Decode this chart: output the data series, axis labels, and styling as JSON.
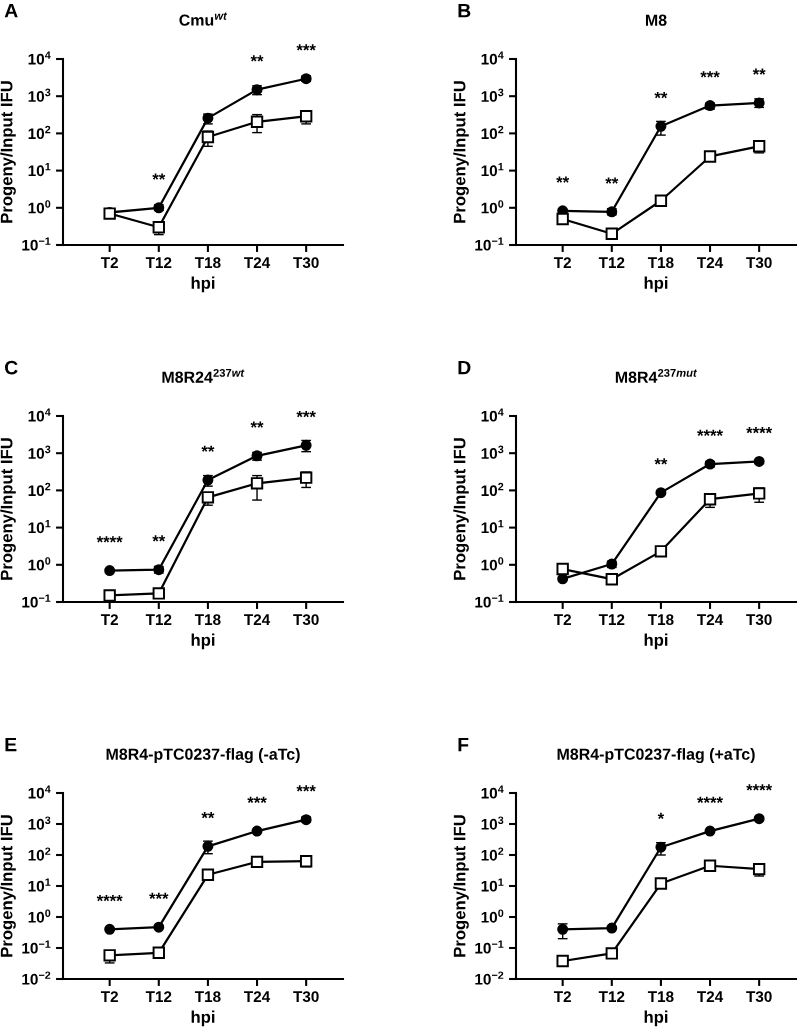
{
  "chart_data": [
    {
      "type": "line",
      "title": "Cmu$^{wt}$",
      "xlabel": "hpi",
      "ylabel": "Progeny/Input IFU",
      "categories": [
        "T2",
        "T12",
        "T18",
        "T24",
        "T30"
      ],
      "log": true,
      "ylim": [
        0.1,
        10000
      ],
      "yticks": [
        {
          "value": 0.1,
          "label": "10$^{−1}$"
        },
        {
          "value": 1,
          "label": "10$^{0}$"
        },
        {
          "value": 10,
          "label": "10$^{1}$"
        },
        {
          "value": 100,
          "label": "10$^{2}$"
        },
        {
          "value": 1000,
          "label": "10$^{3}$"
        },
        {
          "value": 10000,
          "label": "10$^{4}$"
        }
      ],
      "series": [
        {
          "color": "#000000",
          "marker": "circle",
          "values": [
            0.75,
            1.0,
            257,
            1500,
            2950
          ],
          "errors": [
            null,
            [
              0.85,
              1.2
            ],
            [
              180,
              330
            ],
            [
              1100,
              1900
            ],
            [
              2500,
              3500
            ]
          ]
        },
        {
          "color": "#000000",
          "marker": "square",
          "values": [
            0.7,
            0.3,
            80,
            205,
            290
          ],
          "errors": [
            null,
            [
              0.19,
              0.35
            ],
            [
              45,
              115
            ],
            [
              105,
              320
            ],
            [
              180,
              370
            ]
          ]
        }
      ],
      "annotations": [
        "A",
        {
          "text": "**",
          "x": "T12",
          "y": 1.0
        },
        {
          "text": "**",
          "x": "T24",
          "y": 1500
        },
        {
          "text": "***",
          "x": "T30",
          "y": 2950
        }
      ]
    },
    {
      "type": "line",
      "title": "M8",
      "xlabel": "hpi",
      "ylabel": "Progeny/Input IFU",
      "categories": [
        "T2",
        "T12",
        "T18",
        "T24",
        "T30"
      ],
      "log": true,
      "ylim": [
        0.1,
        10000
      ],
      "yticks": [
        {
          "value": 0.1,
          "label": "10$^{−1}$"
        },
        {
          "value": 1,
          "label": "10$^{0}$"
        },
        {
          "value": 10,
          "label": "10$^{1}$"
        },
        {
          "value": 100,
          "label": "10$^{2}$"
        },
        {
          "value": 1000,
          "label": "10$^{3}$"
        },
        {
          "value": 10000,
          "label": "10$^{4}$"
        }
      ],
      "series": [
        {
          "color": "#000000",
          "marker": "circle",
          "values": [
            0.83,
            0.78,
            155,
            560,
            660
          ],
          "errors": [
            null,
            [
              0.65,
              0.95
            ],
            [
              90,
              210
            ],
            [
              450,
              650
            ],
            [
              500,
              850
            ]
          ]
        },
        {
          "color": "#000000",
          "marker": "square",
          "values": [
            0.5,
            0.2,
            1.55,
            24,
            45
          ],
          "errors": [
            [
              0.38,
              0.6
            ],
            null,
            [
              1.25,
              1.9
            ],
            null,
            [
              30,
              55
            ]
          ]
        }
      ],
      "annotations": [
        "B",
        {
          "text": "**",
          "x": "T2",
          "y": 0.83
        },
        {
          "text": "**",
          "x": "T12",
          "y": 0.78
        },
        {
          "text": "**",
          "x": "T18",
          "y": 155
        },
        {
          "text": "***",
          "x": "T24",
          "y": 560
        },
        {
          "text": "**",
          "x": "T30",
          "y": 660
        }
      ]
    },
    {
      "type": "line",
      "title": "M8R24$^{237wt}$",
      "xlabel": "hpi",
      "ylabel": "Progeny/Input IFU",
      "categories": [
        "T2",
        "T12",
        "T18",
        "T24",
        "T30"
      ],
      "log": true,
      "ylim": [
        0.1,
        10000
      ],
      "yticks": [
        {
          "value": 0.1,
          "label": "10$^{−1}$"
        },
        {
          "value": 1,
          "label": "10$^{0}$"
        },
        {
          "value": 10,
          "label": "10$^{1}$"
        },
        {
          "value": 100,
          "label": "10$^{2}$"
        },
        {
          "value": 1000,
          "label": "10$^{3}$"
        },
        {
          "value": 10000,
          "label": "10$^{4}$"
        }
      ],
      "series": [
        {
          "color": "#000000",
          "marker": "circle",
          "values": [
            0.7,
            0.74,
            190,
            850,
            1630
          ],
          "errors": [
            null,
            [
              0.6,
              0.9
            ],
            [
              130,
              250
            ],
            [
              650,
              1050
            ],
            [
              1100,
              2200
            ]
          ]
        },
        {
          "color": "#000000",
          "marker": "square",
          "values": [
            0.15,
            0.17,
            65,
            155,
            220
          ],
          "errors": [
            null,
            null,
            [
              40,
              85
            ],
            [
              55,
              250
            ],
            [
              120,
              310
            ]
          ]
        }
      ],
      "annotations": [
        "C",
        {
          "text": "****",
          "x": "T2",
          "y": 0.7
        },
        {
          "text": "**",
          "x": "T12",
          "y": 0.74
        },
        {
          "text": "**",
          "x": "T18",
          "y": 190
        },
        {
          "text": "**",
          "x": "T24",
          "y": 850
        },
        {
          "text": "***",
          "x": "T30",
          "y": 1630
        }
      ]
    },
    {
      "type": "line",
      "title": "M8R4$^{237mut}$",
      "xlabel": "hpi",
      "ylabel": "Progeny/Input IFU",
      "categories": [
        "T2",
        "T12",
        "T18",
        "T24",
        "T30"
      ],
      "log": true,
      "ylim": [
        0.1,
        10000
      ],
      "yticks": [
        {
          "value": 0.1,
          "label": "10$^{−1}$"
        },
        {
          "value": 1,
          "label": "10$^{0}$"
        },
        {
          "value": 10,
          "label": "10$^{1}$"
        },
        {
          "value": 100,
          "label": "10$^{2}$"
        },
        {
          "value": 1000,
          "label": "10$^{3}$"
        },
        {
          "value": 10000,
          "label": "10$^{4}$"
        }
      ],
      "series": [
        {
          "color": "#000000",
          "marker": "circle",
          "values": [
            0.42,
            1.05,
            87,
            510,
            600
          ],
          "errors": [
            null,
            [
              0.85,
              1.25
            ],
            null,
            [
              430,
              600
            ],
            null
          ]
        },
        {
          "color": "#000000",
          "marker": "square",
          "values": [
            0.77,
            0.41,
            2.3,
            58,
            83
          ],
          "errors": [
            null,
            [
              0.3,
              0.5
            ],
            null,
            [
              35,
              75
            ],
            [
              48,
              115
            ]
          ]
        }
      ],
      "annotations": [
        "D",
        {
          "text": "**",
          "x": "T18",
          "y": 87
        },
        {
          "text": "****",
          "x": "T24",
          "y": 510
        },
        {
          "text": "****",
          "x": "T30",
          "y": 600
        }
      ]
    },
    {
      "type": "line",
      "title": "M8R4-pTC0237-flag (-aTc)",
      "xlabel": "hpi",
      "ylabel": "Progeny/Input IFU",
      "categories": [
        "T2",
        "T12",
        "T18",
        "T24",
        "T30"
      ],
      "log": true,
      "ylim": [
        0.01,
        10000
      ],
      "yticks": [
        {
          "value": 0.01,
          "label": "10$^{−2}$"
        },
        {
          "value": 0.1,
          "label": "10$^{−1}$"
        },
        {
          "value": 1,
          "label": "10$^{0}$"
        },
        {
          "value": 10,
          "label": "10$^{1}$"
        },
        {
          "value": 100,
          "label": "10$^{2}$"
        },
        {
          "value": 1000,
          "label": "10$^{3}$"
        },
        {
          "value": 10000,
          "label": "10$^{4}$"
        }
      ],
      "series": [
        {
          "color": "#000000",
          "marker": "circle",
          "values": [
            0.4,
            0.47,
            190,
            590,
            1380
          ],
          "errors": [
            null,
            null,
            [
              110,
              280
            ],
            null,
            [
              1150,
              1700
            ]
          ]
        },
        {
          "color": "#000000",
          "marker": "square",
          "values": [
            0.058,
            0.07,
            23,
            60,
            63
          ],
          "errors": [
            [
              0.033,
              0.075
            ],
            null,
            null,
            null,
            [
              42,
              75
            ]
          ]
        }
      ],
      "annotations": [
        "E",
        {
          "text": "****",
          "x": "T2",
          "y": 0.4
        },
        {
          "text": "***",
          "x": "T12",
          "y": 0.47
        },
        {
          "text": "**",
          "x": "T18",
          "y": 190
        },
        {
          "text": "***",
          "x": "T24",
          "y": 590
        },
        {
          "text": "***",
          "x": "T30",
          "y": 1380
        }
      ]
    },
    {
      "type": "line",
      "title": "M8R4-pTC0237-flag (+aTc)",
      "xlabel": "hpi",
      "ylabel": "Progeny/Input IFU",
      "categories": [
        "T2",
        "T12",
        "T18",
        "T24",
        "T30"
      ],
      "log": true,
      "ylim": [
        0.01,
        10000
      ],
      "yticks": [
        {
          "value": 0.01,
          "label": "10$^{−2}$"
        },
        {
          "value": 0.1,
          "label": "10$^{−1}$"
        },
        {
          "value": 1,
          "label": "10$^{0}$"
        },
        {
          "value": 10,
          "label": "10$^{1}$"
        },
        {
          "value": 100,
          "label": "10$^{2}$"
        },
        {
          "value": 1000,
          "label": "10$^{3}$"
        },
        {
          "value": 10000,
          "label": "10$^{4}$"
        }
      ],
      "series": [
        {
          "color": "#000000",
          "marker": "circle",
          "values": [
            0.4,
            0.44,
            178,
            590,
            1480
          ],
          "errors": [
            [
              0.2,
              0.6
            ],
            null,
            [
              100,
              250
            ],
            null,
            [
              1300,
              1650
            ]
          ]
        },
        {
          "color": "#000000",
          "marker": "square",
          "values": [
            0.038,
            0.067,
            12,
            45,
            35
          ],
          "errors": [
            null,
            null,
            null,
            null,
            [
              21,
              45
            ]
          ]
        }
      ],
      "annotations": [
        "F",
        {
          "text": "*",
          "x": "T18",
          "y": 178
        },
        {
          "text": "****",
          "x": "T24",
          "y": 590
        },
        {
          "text": "****",
          "x": "T30",
          "y": 1480
        }
      ]
    }
  ]
}
